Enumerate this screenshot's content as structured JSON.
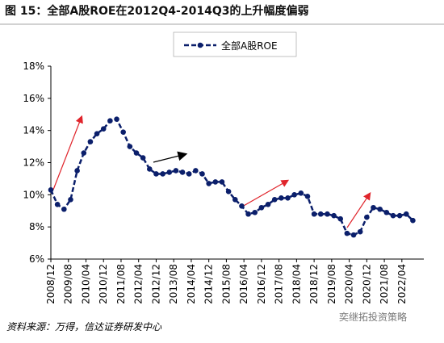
{
  "chart_data": {
    "type": "line",
    "title": "图 15：全部A股ROE在2012Q4-2014Q3的上升幅度偏弱",
    "source": "资料来源：万得，信达证券研发中心",
    "watermark": "奕继拓投资策略",
    "x": [
      "2008/12",
      "2009/03",
      "2009/06",
      "2009/09",
      "2009/12",
      "2010/03",
      "2010/06",
      "2010/09",
      "2010/12",
      "2011/03",
      "2011/06",
      "2011/09",
      "2011/12",
      "2012/03",
      "2012/06",
      "2012/09",
      "2012/12",
      "2013/03",
      "2013/06",
      "2013/09",
      "2013/12",
      "2014/03",
      "2014/06",
      "2014/09",
      "2014/12",
      "2015/03",
      "2015/06",
      "2015/09",
      "2015/12",
      "2016/03",
      "2016/06",
      "2016/09",
      "2016/12",
      "2017/03",
      "2017/06",
      "2017/09",
      "2017/12",
      "2018/03",
      "2018/06",
      "2018/09",
      "2018/12",
      "2019/03",
      "2019/06",
      "2019/09",
      "2019/12",
      "2020/03",
      "2020/06",
      "2020/09",
      "2020/12",
      "2021/03",
      "2021/06",
      "2021/09",
      "2021/12",
      "2022/03",
      "2022/06",
      "2022/09"
    ],
    "series": [
      {
        "name": "全部A股ROE",
        "color": "#0b1f6b",
        "values": [
          10.3,
          9.4,
          9.1,
          9.7,
          11.5,
          12.6,
          13.3,
          13.8,
          14.1,
          14.6,
          14.7,
          13.9,
          13.0,
          12.6,
          12.3,
          11.6,
          11.3,
          11.3,
          11.4,
          11.5,
          11.4,
          11.3,
          11.5,
          11.3,
          10.7,
          10.8,
          10.8,
          10.2,
          9.7,
          9.3,
          8.8,
          8.9,
          9.2,
          9.4,
          9.7,
          9.8,
          9.8,
          10.0,
          10.1,
          9.9,
          8.8,
          8.8,
          8.8,
          8.7,
          8.5,
          7.6,
          7.5,
          7.7,
          8.6,
          9.2,
          9.1,
          8.9,
          8.7,
          8.7,
          8.8,
          8.4
        ]
      }
    ],
    "xlim": [
      "2008/12",
      "2023/02"
    ],
    "xticks": [
      "2008/12",
      "2009/08",
      "2010/04",
      "2010/12",
      "2011/08",
      "2012/04",
      "2012/12",
      "2013/08",
      "2014/04",
      "2014/12",
      "2015/08",
      "2016/04",
      "2016/12",
      "2017/08",
      "2018/04",
      "2018/12",
      "2019/08",
      "2020/04",
      "2020/12",
      "2021/08",
      "2022/04"
    ],
    "ylim": [
      6,
      18
    ],
    "yticks": [
      {
        "value": 6,
        "label": "6%"
      },
      {
        "value": 8,
        "label": "8%"
      },
      {
        "value": 10,
        "label": "10%"
      },
      {
        "value": 12,
        "label": "12%"
      },
      {
        "value": 14,
        "label": "14%"
      },
      {
        "value": 16,
        "label": "16%"
      },
      {
        "value": 18,
        "label": "18%"
      }
    ],
    "grid": false
  }
}
